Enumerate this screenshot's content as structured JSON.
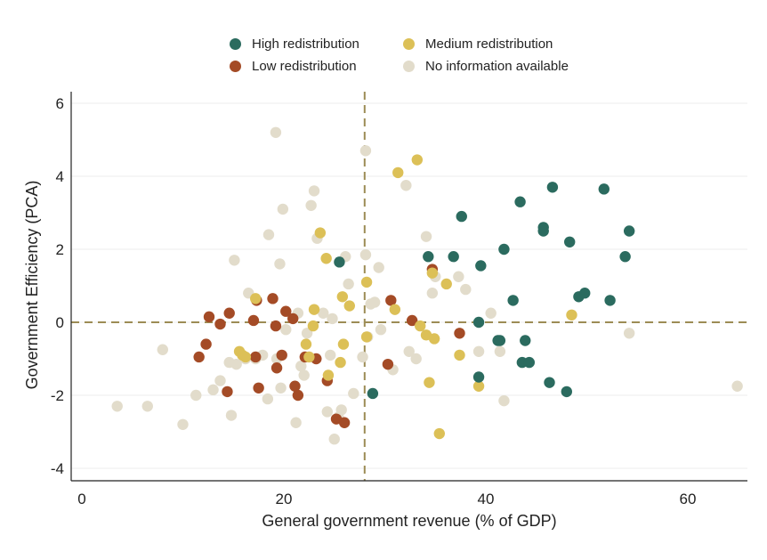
{
  "chart_data": {
    "type": "scatter",
    "title": "",
    "xlabel": "General government revenue (% of GDP)",
    "ylabel": "Government Efficiency (PCA)",
    "xlim": [
      -1,
      66
    ],
    "ylim": [
      -4.4,
      6.3
    ],
    "xticks": [
      0,
      20,
      40,
      60
    ],
    "yticks": [
      -4,
      -2,
      0,
      2,
      4,
      6
    ],
    "grid": "horizontal",
    "legend_position": "top",
    "reference_lines": {
      "x": 28,
      "y": 0
    },
    "colors": {
      "High redistribution": "#2b6b5f",
      "Medium redistribution": "#dcc057",
      "Low redistribution": "#a44b26",
      "No information available": "#e2dccb",
      "reference_line": "#9c8c55"
    },
    "series": [
      {
        "name": "High redistribution",
        "points": [
          [
            25.5,
            1.65
          ],
          [
            28.8,
            -1.95
          ],
          [
            34.3,
            1.8
          ],
          [
            36.8,
            1.8
          ],
          [
            37.6,
            2.9
          ],
          [
            39.3,
            0
          ],
          [
            39.3,
            -1.5
          ],
          [
            39.5,
            1.55
          ],
          [
            41.2,
            -0.5
          ],
          [
            41.4,
            -0.5
          ],
          [
            41.8,
            2
          ],
          [
            42.7,
            0.6
          ],
          [
            43.4,
            3.3
          ],
          [
            43.6,
            -1.1
          ],
          [
            43.9,
            -0.5
          ],
          [
            44.3,
            -1.1
          ],
          [
            45.7,
            2.6
          ],
          [
            45.7,
            2.5
          ],
          [
            46.3,
            -1.65
          ],
          [
            46.6,
            3.7
          ],
          [
            48.0,
            -1.9
          ],
          [
            48.3,
            2.2
          ],
          [
            49.2,
            0.7
          ],
          [
            49.8,
            0.8
          ],
          [
            51.7,
            3.65
          ],
          [
            52.3,
            0.6
          ],
          [
            53.8,
            1.8
          ],
          [
            54.2,
            2.5
          ]
        ]
      },
      {
        "name": "Medium redistribution",
        "points": [
          [
            15.6,
            -0.8
          ],
          [
            15.9,
            -0.9
          ],
          [
            16.2,
            -0.95
          ],
          [
            17.2,
            0.65
          ],
          [
            22.2,
            -0.6
          ],
          [
            22.5,
            -0.95
          ],
          [
            22.9,
            -0.1
          ],
          [
            23.0,
            0.35
          ],
          [
            23.6,
            2.45
          ],
          [
            24.2,
            1.75
          ],
          [
            24.4,
            -1.45
          ],
          [
            25.6,
            -1.1
          ],
          [
            25.8,
            0.7
          ],
          [
            25.9,
            -0.6
          ],
          [
            26.5,
            0.45
          ],
          [
            28.2,
            1.1
          ],
          [
            28.2,
            -0.4
          ],
          [
            31.3,
            4.1
          ],
          [
            31.0,
            0.35
          ],
          [
            33.2,
            4.45
          ],
          [
            33.5,
            -0.1
          ],
          [
            34.1,
            -0.35
          ],
          [
            34.4,
            -1.65
          ],
          [
            34.7,
            1.35
          ],
          [
            34.9,
            -0.45
          ],
          [
            35.4,
            -3.05
          ],
          [
            36.1,
            1.05
          ],
          [
            37.4,
            -0.9
          ],
          [
            39.3,
            -1.75
          ],
          [
            48.5,
            0.2
          ]
        ]
      },
      {
        "name": "Low redistribution",
        "points": [
          [
            11.6,
            -0.95
          ],
          [
            12.3,
            -0.6
          ],
          [
            12.6,
            0.15
          ],
          [
            13.7,
            -0.05
          ],
          [
            14.4,
            -1.9
          ],
          [
            14.6,
            0.25
          ],
          [
            17.0,
            0.05
          ],
          [
            17.2,
            -0.95
          ],
          [
            17.3,
            0.6
          ],
          [
            17.5,
            -1.8
          ],
          [
            18.9,
            0.65
          ],
          [
            19.2,
            -0.1
          ],
          [
            19.3,
            -1.25
          ],
          [
            19.8,
            -0.9
          ],
          [
            20.2,
            0.3
          ],
          [
            20.9,
            0.1
          ],
          [
            21.1,
            -1.75
          ],
          [
            21.4,
            -2
          ],
          [
            22.1,
            -0.95
          ],
          [
            23.2,
            -1
          ],
          [
            24.3,
            -1.6
          ],
          [
            25.2,
            -2.65
          ],
          [
            26.0,
            -2.75
          ],
          [
            30.3,
            -1.15
          ],
          [
            30.6,
            0.6
          ],
          [
            32.7,
            0.05
          ],
          [
            34.7,
            1.45
          ],
          [
            37.4,
            -0.3
          ]
        ]
      },
      {
        "name": "No information available",
        "points": [
          [
            3.5,
            -2.3
          ],
          [
            6.5,
            -2.3
          ],
          [
            8.0,
            -0.75
          ],
          [
            10.0,
            -2.8
          ],
          [
            11.3,
            -2.0
          ],
          [
            13.0,
            -1.85
          ],
          [
            13.7,
            -1.6
          ],
          [
            14.6,
            -1.1
          ],
          [
            14.8,
            -2.55
          ],
          [
            15.1,
            1.7
          ],
          [
            15.3,
            -1.15
          ],
          [
            16.2,
            -1.0
          ],
          [
            16.5,
            0.8
          ],
          [
            17.2,
            -1.0
          ],
          [
            17.9,
            -0.9
          ],
          [
            18.4,
            -2.1
          ],
          [
            18.5,
            2.4
          ],
          [
            19.2,
            5.2
          ],
          [
            19.3,
            -1.0
          ],
          [
            19.6,
            1.6
          ],
          [
            19.7,
            -1.8
          ],
          [
            19.9,
            3.1
          ],
          [
            20.2,
            -0.2
          ],
          [
            21.2,
            -2.75
          ],
          [
            21.4,
            0.25
          ],
          [
            21.7,
            -1.2
          ],
          [
            22.0,
            -1.45
          ],
          [
            22.3,
            -0.3
          ],
          [
            22.7,
            3.2
          ],
          [
            23.0,
            3.6
          ],
          [
            23.3,
            2.3
          ],
          [
            23.9,
            0.25
          ],
          [
            24.3,
            -2.45
          ],
          [
            24.6,
            -0.9
          ],
          [
            24.8,
            0.1
          ],
          [
            25.0,
            -3.2
          ],
          [
            25.4,
            -2.6
          ],
          [
            25.7,
            -2.4
          ],
          [
            26.1,
            1.8
          ],
          [
            26.4,
            1.05
          ],
          [
            26.9,
            -1.95
          ],
          [
            27.8,
            -0.95
          ],
          [
            28.1,
            1.85
          ],
          [
            28.1,
            4.7
          ],
          [
            28.3,
            -0.4
          ],
          [
            28.6,
            0.5
          ],
          [
            29.0,
            0.55
          ],
          [
            29.4,
            1.5
          ],
          [
            29.6,
            -0.2
          ],
          [
            30.8,
            -1.3
          ],
          [
            32.1,
            3.75
          ],
          [
            32.4,
            -0.8
          ],
          [
            33.1,
            -1.0
          ],
          [
            34.1,
            2.35
          ],
          [
            34.7,
            0.8
          ],
          [
            35.0,
            1.25
          ],
          [
            37.3,
            1.25
          ],
          [
            38.0,
            0.9
          ],
          [
            39.3,
            -0.8
          ],
          [
            40.5,
            0.25
          ],
          [
            41.4,
            -0.8
          ],
          [
            41.8,
            -2.15
          ],
          [
            54.2,
            -0.3
          ],
          [
            64.9,
            -1.75
          ]
        ]
      }
    ]
  }
}
